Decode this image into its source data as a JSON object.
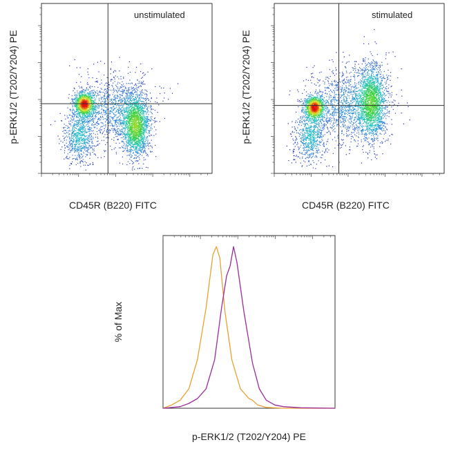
{
  "chart_data": [
    {
      "type": "scatter",
      "panel": "unstimulated",
      "annotation": "unstimulated",
      "xlabel": "CD45R (B220) FITC",
      "ylabel": "p-ERK1/2 (T202/Y204) PE",
      "xscale": "log",
      "yscale": "log",
      "xlim": [
        0,
        1
      ],
      "ylim": [
        0,
        1
      ],
      "quadrant_gate": {
        "x": 0.39,
        "y": 0.41
      },
      "populations": [
        {
          "center": [
            0.25,
            0.41
          ],
          "sd": [
            0.03,
            0.035
          ],
          "weight": 0.22
        },
        {
          "center": [
            0.22,
            0.22
          ],
          "sd": [
            0.045,
            0.08
          ],
          "weight": 0.15
        },
        {
          "center": [
            0.55,
            0.28
          ],
          "sd": [
            0.04,
            0.09
          ],
          "weight": 0.38
        },
        {
          "center": [
            0.42,
            0.38
          ],
          "sd": [
            0.11,
            0.1
          ],
          "weight": 0.25
        }
      ],
      "density_colors": [
        "#1a1aa0",
        "#2f6fe0",
        "#22c3c8",
        "#3ad23a",
        "#e6e020",
        "#e01010"
      ]
    },
    {
      "type": "scatter",
      "panel": "stimulated",
      "annotation": "stimulated",
      "xlabel": "CD45R (B220) FITC",
      "ylabel": "p-ERK1/2 (T202/Y204) PE",
      "xscale": "log",
      "yscale": "log",
      "xlim": [
        0,
        1
      ],
      "ylim": [
        0,
        1
      ],
      "quadrant_gate": {
        "x": 0.38,
        "y": 0.4
      },
      "populations": [
        {
          "center": [
            0.235,
            0.39
          ],
          "sd": [
            0.03,
            0.035
          ],
          "weight": 0.2
        },
        {
          "center": [
            0.21,
            0.22
          ],
          "sd": [
            0.045,
            0.08
          ],
          "weight": 0.14
        },
        {
          "center": [
            0.57,
            0.42
          ],
          "sd": [
            0.045,
            0.11
          ],
          "weight": 0.4
        },
        {
          "center": [
            0.42,
            0.4
          ],
          "sd": [
            0.11,
            0.11
          ],
          "weight": 0.26
        }
      ],
      "density_colors": [
        "#1a1aa0",
        "#2f6fe0",
        "#22c3c8",
        "#3ad23a",
        "#e6e020",
        "#e01010"
      ]
    },
    {
      "type": "line",
      "panel": "histogram",
      "xlabel": "p-ERK1/2 (T202/Y204) PE",
      "ylabel": "% of Max",
      "xscale": "log",
      "xlim": [
        0,
        1
      ],
      "ylim": [
        0,
        100
      ],
      "series": [
        {
          "color": "#e8a030",
          "x": [
            0,
            0.05,
            0.1,
            0.15,
            0.2,
            0.25,
            0.29,
            0.31,
            0.33,
            0.36,
            0.4,
            0.45,
            0.5,
            0.52,
            0.55,
            0.6,
            0.7,
            1
          ],
          "y": [
            0,
            2,
            5,
            12,
            30,
            62,
            95,
            100,
            93,
            60,
            30,
            12,
            6,
            5,
            2,
            0.5,
            0,
            0
          ]
        },
        {
          "color": "#9a2a9a",
          "x": [
            0,
            0.1,
            0.15,
            0.2,
            0.25,
            0.3,
            0.34,
            0.37,
            0.39,
            0.41,
            0.43,
            0.47,
            0.52,
            0.56,
            0.6,
            0.65,
            0.7,
            0.8,
            1
          ],
          "y": [
            0,
            1,
            3,
            6,
            12,
            30,
            62,
            82,
            88,
            100,
            90,
            60,
            28,
            12,
            5,
            2,
            1,
            0.3,
            0
          ]
        }
      ]
    }
  ]
}
